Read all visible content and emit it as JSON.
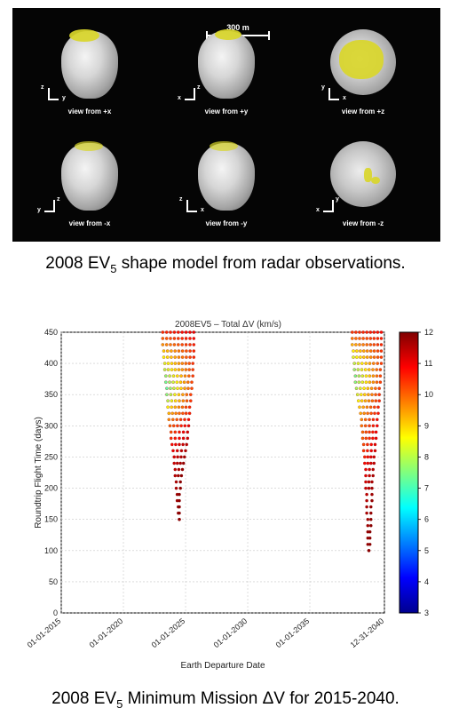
{
  "shape_panel": {
    "scale_bar_label": "300 m",
    "views": [
      {
        "label": "view from +x",
        "axis_up": "z",
        "axis_side": "y",
        "side": "right",
        "shape": "top-heavy"
      },
      {
        "label": "view from +y",
        "axis_up": "z",
        "axis_side": "x",
        "side": "left",
        "shape": "top-heavy"
      },
      {
        "label": "view from +z",
        "axis_up": "y",
        "axis_side": "x",
        "side": "right",
        "shape": "round-yellow"
      },
      {
        "label": "view from -x",
        "axis_up": "z",
        "axis_side": "y",
        "side": "left",
        "shape": "top-heavy"
      },
      {
        "label": "view from -y",
        "axis_up": "z",
        "axis_side": "x",
        "side": "right",
        "shape": "top-heavy"
      },
      {
        "label": "view from -z",
        "axis_up": "y",
        "axis_side": "x",
        "side": "left",
        "shape": "round-spots"
      }
    ]
  },
  "captions": {
    "top_prefix": "2008 EV",
    "top_sub": "5",
    "top_suffix": " shape model from radar observations.",
    "bottom_prefix": "2008 EV",
    "bottom_sub": "5",
    "bottom_suffix": " Minimum Mission ΔV for 2015-2040."
  },
  "chart_data": {
    "type": "scatter",
    "title": "2008EV5 – Total ΔV (km/s)",
    "xlabel": "Earth Departure Date",
    "ylabel": "Roundtrip Flight Time (days)",
    "x_ticks": [
      "01-01-2015",
      "01-01-2020",
      "01-01-2025",
      "01-01-2030",
      "01-01-2035",
      "12-31-2040"
    ],
    "x_range": [
      "2015-01-01",
      "2040-12-31"
    ],
    "y_ticks": [
      0,
      50,
      100,
      150,
      200,
      250,
      300,
      350,
      400,
      450
    ],
    "ylim": [
      0,
      450
    ],
    "grid": true,
    "colorbar": {
      "min": 3,
      "max": 12,
      "ticks": [
        3,
        4,
        5,
        6,
        7,
        8,
        9,
        10,
        11,
        12
      ],
      "colormap": "jet"
    },
    "clusters": [
      {
        "name": "window-1",
        "rows": [
          {
            "y": 450,
            "x_start": "2023-03-01",
            "x_end": "2025-09-01",
            "dv_start": 10.5,
            "dv_end": 11.0
          },
          {
            "y": 440,
            "x_start": "2023-03-01",
            "x_end": "2025-09-01",
            "dv_start": 10.0,
            "dv_end": 10.8
          },
          {
            "y": 430,
            "x_start": "2023-03-01",
            "x_end": "2025-09-01",
            "dv_start": 9.5,
            "dv_end": 10.6
          },
          {
            "y": 420,
            "x_start": "2023-04-01",
            "x_end": "2025-09-01",
            "dv_start": 9.0,
            "dv_end": 10.5
          },
          {
            "y": 410,
            "x_start": "2023-04-01",
            "x_end": "2025-09-01",
            "dv_start": 8.6,
            "dv_end": 10.5
          },
          {
            "y": 400,
            "x_start": "2023-05-01",
            "x_end": "2025-08-01",
            "dv_start": 8.3,
            "dv_end": 10.4
          },
          {
            "y": 390,
            "x_start": "2023-05-01",
            "x_end": "2025-08-01",
            "dv_start": 8.0,
            "dv_end": 10.3
          },
          {
            "y": 380,
            "x_start": "2023-06-01",
            "x_end": "2025-08-01",
            "dv_start": 7.6,
            "dv_end": 10.3
          },
          {
            "y": 370,
            "x_start": "2023-06-01",
            "x_end": "2025-07-01",
            "dv_start": 7.3,
            "dv_end": 10.2
          },
          {
            "y": 360,
            "x_start": "2023-07-01",
            "x_end": "2025-07-01",
            "dv_start": 7.2,
            "dv_end": 10.2
          },
          {
            "y": 350,
            "x_start": "2023-07-01",
            "x_end": "2025-06-01",
            "dv_start": 7.5,
            "dv_end": 10.3
          },
          {
            "y": 340,
            "x_start": "2023-08-01",
            "x_end": "2025-06-01",
            "dv_start": 8.0,
            "dv_end": 10.4
          },
          {
            "y": 330,
            "x_start": "2023-08-01",
            "x_end": "2025-05-01",
            "dv_start": 8.6,
            "dv_end": 10.5
          },
          {
            "y": 320,
            "x_start": "2023-09-01",
            "x_end": "2025-05-01",
            "dv_start": 9.2,
            "dv_end": 10.6
          },
          {
            "y": 310,
            "x_start": "2023-09-01",
            "x_end": "2025-04-01",
            "dv_start": 9.6,
            "dv_end": 10.8
          },
          {
            "y": 300,
            "x_start": "2023-10-01",
            "x_end": "2025-04-01",
            "dv_start": 10.0,
            "dv_end": 11.0
          },
          {
            "y": 290,
            "x_start": "2023-11-01",
            "x_end": "2025-03-01",
            "dv_start": 10.2,
            "dv_end": 11.2
          },
          {
            "y": 280,
            "x_start": "2023-11-01",
            "x_end": "2025-03-01",
            "dv_start": 10.5,
            "dv_end": 11.3
          },
          {
            "y": 270,
            "x_start": "2023-12-01",
            "x_end": "2025-02-01",
            "dv_start": 10.8,
            "dv_end": 11.5
          },
          {
            "y": 260,
            "x_start": "2024-01-01",
            "x_end": "2025-01-01",
            "dv_start": 11.0,
            "dv_end": 11.6
          },
          {
            "y": 250,
            "x_start": "2024-02-01",
            "x_end": "2024-12-01",
            "dv_start": 11.2,
            "dv_end": 11.7
          },
          {
            "y": 240,
            "x_start": "2024-02-01",
            "x_end": "2024-11-01",
            "dv_start": 11.3,
            "dv_end": 11.8
          },
          {
            "y": 230,
            "x_start": "2024-03-01",
            "x_end": "2024-10-01",
            "dv_start": 11.4,
            "dv_end": 11.8
          },
          {
            "y": 220,
            "x_start": "2024-03-01",
            "x_end": "2024-09-01",
            "dv_start": 11.5,
            "dv_end": 11.9
          },
          {
            "y": 210,
            "x_start": "2024-04-01",
            "x_end": "2024-08-01",
            "dv_start": 11.6,
            "dv_end": 11.9
          },
          {
            "y": 200,
            "x_start": "2024-04-01",
            "x_end": "2024-08-01",
            "dv_start": 11.6,
            "dv_end": 11.9
          },
          {
            "y": 190,
            "x_start": "2024-05-01",
            "x_end": "2024-07-01",
            "dv_start": 11.7,
            "dv_end": 11.9
          },
          {
            "y": 180,
            "x_start": "2024-05-01",
            "x_end": "2024-07-01",
            "dv_start": 11.7,
            "dv_end": 11.9
          },
          {
            "y": 170,
            "x_start": "2024-06-01",
            "x_end": "2024-07-01",
            "dv_start": 11.8,
            "dv_end": 11.9
          },
          {
            "y": 160,
            "x_start": "2024-06-01",
            "x_end": "2024-07-01",
            "dv_start": 11.8,
            "dv_end": 11.9
          },
          {
            "y": 150,
            "x_start": "2024-07-01",
            "x_end": "2024-07-01",
            "dv_start": 11.9,
            "dv_end": 11.9
          }
        ]
      },
      {
        "name": "window-2",
        "rows": [
          {
            "y": 450,
            "x_start": "2038-06-01",
            "x_end": "2040-10-01",
            "dv_start": 10.4,
            "dv_end": 10.8
          },
          {
            "y": 440,
            "x_start": "2038-06-01",
            "x_end": "2040-10-01",
            "dv_start": 9.8,
            "dv_end": 10.6
          },
          {
            "y": 430,
            "x_start": "2038-06-01",
            "x_end": "2040-10-01",
            "dv_start": 9.2,
            "dv_end": 10.5
          },
          {
            "y": 420,
            "x_start": "2038-07-01",
            "x_end": "2040-10-01",
            "dv_start": 8.7,
            "dv_end": 10.4
          },
          {
            "y": 410,
            "x_start": "2038-07-01",
            "x_end": "2040-10-01",
            "dv_start": 8.3,
            "dv_end": 10.3
          },
          {
            "y": 400,
            "x_start": "2038-08-01",
            "x_end": "2040-10-01",
            "dv_start": 8.0,
            "dv_end": 10.3
          },
          {
            "y": 390,
            "x_start": "2038-08-01",
            "x_end": "2040-09-01",
            "dv_start": 7.6,
            "dv_end": 10.2
          },
          {
            "y": 380,
            "x_start": "2038-09-01",
            "x_end": "2040-09-01",
            "dv_start": 7.4,
            "dv_end": 10.2
          },
          {
            "y": 370,
            "x_start": "2038-09-01",
            "x_end": "2040-09-01",
            "dv_start": 7.5,
            "dv_end": 10.3
          },
          {
            "y": 360,
            "x_start": "2038-10-01",
            "x_end": "2040-08-01",
            "dv_start": 7.8,
            "dv_end": 10.3
          },
          {
            "y": 350,
            "x_start": "2038-11-01",
            "x_end": "2040-08-01",
            "dv_start": 8.2,
            "dv_end": 10.4
          },
          {
            "y": 340,
            "x_start": "2038-12-01",
            "x_end": "2040-08-01",
            "dv_start": 8.6,
            "dv_end": 10.5
          },
          {
            "y": 330,
            "x_start": "2039-01-01",
            "x_end": "2040-07-01",
            "dv_start": 9.0,
            "dv_end": 10.6
          },
          {
            "y": 320,
            "x_start": "2039-02-01",
            "x_end": "2040-07-01",
            "dv_start": 9.3,
            "dv_end": 10.7
          },
          {
            "y": 310,
            "x_start": "2039-03-01",
            "x_end": "2040-06-01",
            "dv_start": 9.6,
            "dv_end": 10.8
          },
          {
            "y": 300,
            "x_start": "2039-03-01",
            "x_end": "2040-06-01",
            "dv_start": 9.8,
            "dv_end": 10.9
          },
          {
            "y": 290,
            "x_start": "2039-04-01",
            "x_end": "2040-05-01",
            "dv_start": 9.9,
            "dv_end": 10.9
          },
          {
            "y": 280,
            "x_start": "2039-04-01",
            "x_end": "2040-05-01",
            "dv_start": 10.0,
            "dv_end": 11.0
          },
          {
            "y": 270,
            "x_start": "2039-05-01",
            "x_end": "2040-04-01",
            "dv_start": 10.2,
            "dv_end": 11.1
          },
          {
            "y": 260,
            "x_start": "2039-05-01",
            "x_end": "2040-04-01",
            "dv_start": 10.4,
            "dv_end": 11.2
          },
          {
            "y": 250,
            "x_start": "2039-06-01",
            "x_end": "2040-03-01",
            "dv_start": 10.6,
            "dv_end": 11.3
          },
          {
            "y": 240,
            "x_start": "2039-06-01",
            "x_end": "2040-03-01",
            "dv_start": 10.8,
            "dv_end": 11.4
          },
          {
            "y": 230,
            "x_start": "2039-07-01",
            "x_end": "2040-02-01",
            "dv_start": 11.0,
            "dv_end": 11.5
          },
          {
            "y": 220,
            "x_start": "2039-07-01",
            "x_end": "2040-02-01",
            "dv_start": 11.1,
            "dv_end": 11.6
          },
          {
            "y": 210,
            "x_start": "2039-07-01",
            "x_end": "2040-01-01",
            "dv_start": 11.2,
            "dv_end": 11.6
          },
          {
            "y": 200,
            "x_start": "2039-07-01",
            "x_end": "2040-01-01",
            "dv_start": 11.3,
            "dv_end": 11.7
          },
          {
            "y": 190,
            "x_start": "2039-08-01",
            "x_end": "2040-01-01",
            "dv_start": 11.4,
            "dv_end": 11.7
          },
          {
            "y": 180,
            "x_start": "2039-08-01",
            "x_end": "2040-01-01",
            "dv_start": 11.5,
            "dv_end": 11.8
          },
          {
            "y": 170,
            "x_start": "2039-08-01",
            "x_end": "2039-12-01",
            "dv_start": 11.6,
            "dv_end": 11.8
          },
          {
            "y": 160,
            "x_start": "2039-08-01",
            "x_end": "2039-12-01",
            "dv_start": 11.6,
            "dv_end": 11.8
          },
          {
            "y": 150,
            "x_start": "2039-09-01",
            "x_end": "2039-12-01",
            "dv_start": 11.7,
            "dv_end": 11.9
          },
          {
            "y": 140,
            "x_start": "2039-09-01",
            "x_end": "2039-12-01",
            "dv_start": 11.7,
            "dv_end": 11.9
          },
          {
            "y": 130,
            "x_start": "2039-09-01",
            "x_end": "2039-11-01",
            "dv_start": 11.8,
            "dv_end": 11.9
          },
          {
            "y": 120,
            "x_start": "2039-09-01",
            "x_end": "2039-11-01",
            "dv_start": 11.8,
            "dv_end": 11.9
          },
          {
            "y": 110,
            "x_start": "2039-09-01",
            "x_end": "2039-11-01",
            "dv_start": 11.8,
            "dv_end": 11.9
          },
          {
            "y": 100,
            "x_start": "2039-10-01",
            "x_end": "2039-10-01",
            "dv_start": 11.9,
            "dv_end": 11.9
          }
        ]
      }
    ]
  }
}
